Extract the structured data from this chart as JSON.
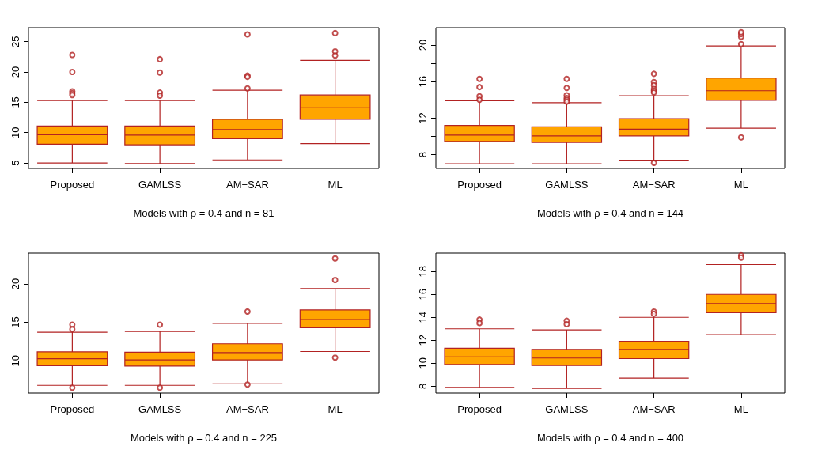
{
  "chart_data": [
    {
      "type": "box",
      "xlabel": "Models with ρ = 0.4 and n = 81",
      "categories": [
        "Proposed",
        "GAMLSS",
        "AM−SAR",
        "ML"
      ],
      "ylim": [
        4.1,
        27.3
      ],
      "yticks": [
        5,
        10,
        15,
        20,
        25
      ],
      "series": [
        {
          "color": "#ffa500",
          "boxes": [
            {
              "low": 5.0,
              "q1": 8.1,
              "median": 9.65,
              "q3": 11.1,
              "high": 15.3,
              "outliers": [
                22.8,
                20.0,
                16.8,
                16.5,
                16.2
              ]
            },
            {
              "low": 4.9,
              "q1": 8.0,
              "median": 9.6,
              "q3": 11.1,
              "high": 15.3,
              "outliers": [
                22.1,
                19.9,
                16.6,
                16.1
              ]
            },
            {
              "low": 5.5,
              "q1": 9.0,
              "median": 10.5,
              "q3": 12.2,
              "high": 17.0,
              "outliers": [
                26.2,
                19.4,
                19.2,
                17.3
              ]
            },
            {
              "low": 8.2,
              "q1": 12.2,
              "median": 14.1,
              "q3": 16.2,
              "high": 21.9,
              "outliers": [
                26.4,
                23.4,
                22.7
              ]
            }
          ]
        }
      ]
    },
    {
      "type": "box",
      "xlabel": "Models with ρ = 0.4 and n = 144",
      "categories": [
        "Proposed",
        "GAMLSS",
        "AM−SAR",
        "ML"
      ],
      "ylim": [
        6.5,
        21.9
      ],
      "yticks": [
        8,
        {
          "value": 10,
          "label": null
        },
        12,
        {
          "value": 14,
          "label": null
        },
        16,
        {
          "value": 18,
          "label": null
        },
        20
      ],
      "series": [
        {
          "color": "#ffa500",
          "boxes": [
            {
              "low": 7.0,
              "q1": 9.45,
              "median": 10.15,
              "q3": 11.2,
              "high": 13.9,
              "outliers": [
                16.3,
                15.4,
                14.4,
                14.0
              ]
            },
            {
              "low": 7.0,
              "q1": 9.35,
              "median": 10.05,
              "q3": 11.05,
              "high": 13.7,
              "outliers": [
                16.3,
                15.3,
                14.5,
                14.2,
                14.0,
                13.8
              ]
            },
            {
              "low": 7.4,
              "q1": 10.05,
              "median": 10.8,
              "q3": 11.95,
              "high": 14.45,
              "outliers": [
                16.85,
                15.95,
                15.6,
                15.2,
                15.0,
                14.8,
                7.1
              ]
            },
            {
              "low": 10.9,
              "q1": 13.95,
              "median": 15.0,
              "q3": 16.4,
              "high": 19.9,
              "outliers": [
                9.9,
                20.1,
                20.9,
                21.2,
                21.4
              ]
            }
          ]
        }
      ]
    },
    {
      "type": "box",
      "xlabel": "Models with ρ = 0.4 and n = 225",
      "categories": [
        "Proposed",
        "GAMLSS",
        "AM−SAR",
        "ML"
      ],
      "ylim": [
        5.8,
        24.0
      ],
      "yticks": [
        10,
        15,
        20
      ],
      "series": [
        {
          "color": "#ffa500",
          "boxes": [
            {
              "low": 6.8,
              "q1": 9.35,
              "median": 10.25,
              "q3": 11.15,
              "high": 13.7,
              "outliers": [
                14.7,
                14.1,
                6.5
              ]
            },
            {
              "low": 6.8,
              "q1": 9.3,
              "median": 10.1,
              "q3": 11.1,
              "high": 13.8,
              "outliers": [
                14.7,
                6.5
              ]
            },
            {
              "low": 7.0,
              "q1": 10.1,
              "median": 11.05,
              "q3": 12.2,
              "high": 14.85,
              "outliers": [
                16.4,
                6.9
              ]
            },
            {
              "low": 11.2,
              "q1": 14.3,
              "median": 15.35,
              "q3": 16.6,
              "high": 19.4,
              "outliers": [
                10.4,
                20.5,
                23.3
              ]
            }
          ]
        }
      ]
    },
    {
      "type": "box",
      "xlabel": "Models with ρ = 0.4 and n = 400",
      "categories": [
        "Proposed",
        "GAMLSS",
        "AM−SAR",
        "ML"
      ],
      "ylim": [
        7.4,
        19.6
      ],
      "yticks": [
        8,
        10,
        12,
        14,
        16,
        18
      ],
      "series": [
        {
          "color": "#ffa500",
          "boxes": [
            {
              "low": 7.9,
              "q1": 9.9,
              "median": 10.55,
              "q3": 11.3,
              "high": 13.0,
              "outliers": [
                13.8,
                13.5
              ]
            },
            {
              "low": 7.8,
              "q1": 9.8,
              "median": 10.45,
              "q3": 11.2,
              "high": 12.9,
              "outliers": [
                13.7,
                13.4
              ]
            },
            {
              "low": 8.7,
              "q1": 10.4,
              "median": 11.2,
              "q3": 11.9,
              "high": 14.0,
              "outliers": [
                14.5,
                14.3
              ]
            },
            {
              "low": 12.5,
              "q1": 14.4,
              "median": 15.2,
              "q3": 16.0,
              "high": 18.6,
              "outliers": [
                19.4,
                19.2
              ]
            }
          ]
        }
      ]
    }
  ]
}
